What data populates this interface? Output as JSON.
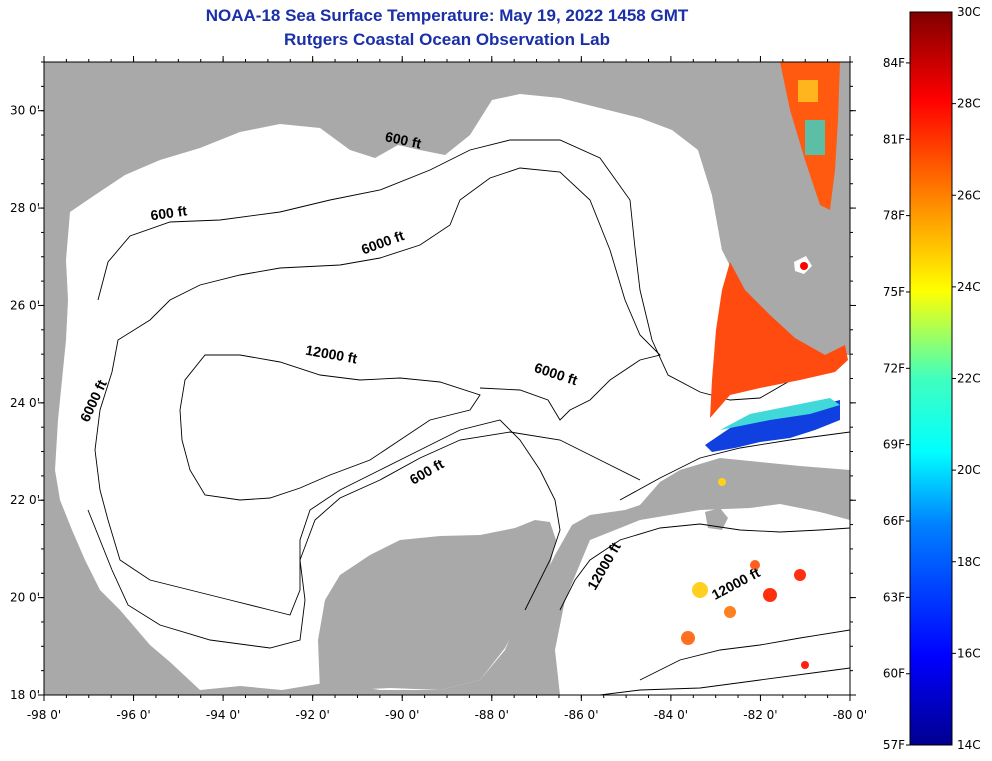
{
  "title": {
    "line1": "NOAA-18 Sea Surface Temperature:  May 19, 2022 1458 GMT",
    "line2": "Rutgers Coastal Ocean Observation Lab"
  },
  "map": {
    "lon_range": [
      -98,
      -80
    ],
    "lat_range": [
      18,
      31
    ],
    "lon_ticks": [
      "-98 0'",
      "-96 0'",
      "-94 0'",
      "-92 0'",
      "-90 0'",
      "-88 0'",
      "-86 0'",
      "-84 0'",
      "-82 0'",
      "-80 0'"
    ],
    "lat_ticks": [
      "18 0'",
      "20 0'",
      "22 0'",
      "24 0'",
      "26 0'",
      "28 0'",
      "30 0'"
    ],
    "contour_labels": [
      {
        "text": "600 ft",
        "lon": -90.0,
        "lat": 29.3
      },
      {
        "text": "600 ft",
        "lon": -95.2,
        "lat": 27.8
      },
      {
        "text": "6000 ft",
        "lon": -90.4,
        "lat": 27.2
      },
      {
        "text": "12000 ft",
        "lon": -91.6,
        "lat": 24.9
      },
      {
        "text": "6000 ft",
        "lon": -86.6,
        "lat": 24.5
      },
      {
        "text": "6000 ft",
        "lon": -96.8,
        "lat": 24.0
      },
      {
        "text": "600 ft",
        "lon": -89.4,
        "lat": 22.5
      },
      {
        "text": "12000 ft",
        "lon": -85.4,
        "lat": 20.6
      },
      {
        "text": "12000 ft",
        "lon": -82.5,
        "lat": 20.2
      }
    ],
    "colors": {
      "land": "#a9a9a9",
      "ocean": "#ffffff",
      "contour": "#000000"
    }
  },
  "colorbar": {
    "celsius_labels": [
      "30C",
      "28C",
      "26C",
      "24C",
      "22C",
      "20C",
      "18C",
      "16C",
      "14C"
    ],
    "fahrenheit_labels": [
      "84F",
      "81F",
      "78F",
      "75F",
      "72F",
      "69F",
      "66F",
      "63F",
      "60F",
      "57F"
    ],
    "range_c": [
      14,
      30
    ]
  }
}
